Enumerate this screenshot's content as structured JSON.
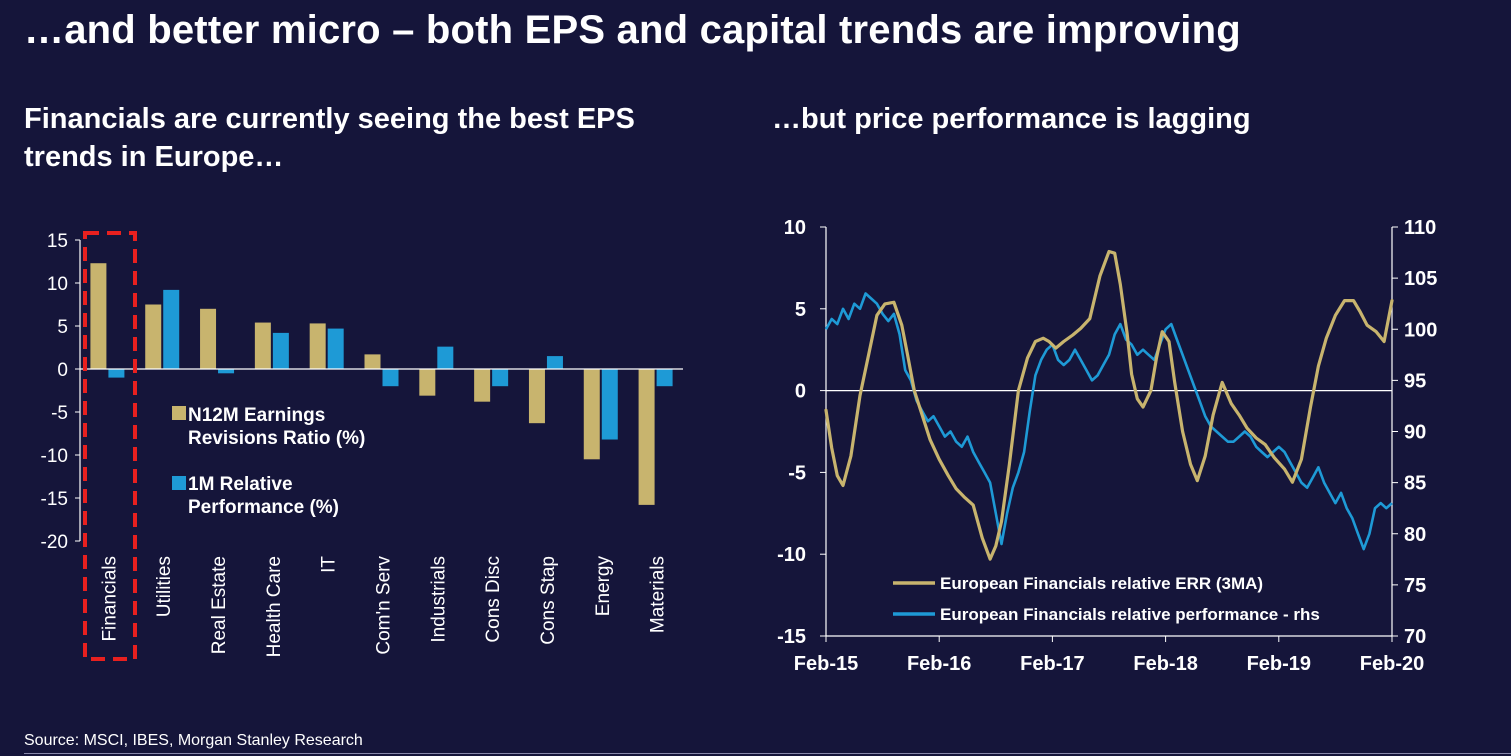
{
  "page": {
    "title": "…and better micro – both EPS and capital trends are improving",
    "left_subtitle": "Financials are currently seeing the best EPS trends in Europe…",
    "right_subtitle": "…but price performance is lagging",
    "source": "Source: MSCI, IBES, Morgan Stanley Research"
  },
  "colors": {
    "background": "#15153a",
    "tan": "#c8b46e",
    "blue": "#1e9ad6",
    "highlight": "#e8201f"
  },
  "chart_data": [
    {
      "type": "bar",
      "categories": [
        "Financials",
        "Utilities",
        "Real Estate",
        "Health Care",
        "IT",
        "Com'n Serv",
        "Industrials",
        "Cons Disc",
        "Cons Stap",
        "Energy",
        "Materials"
      ],
      "series": [
        {
          "name": "N12M Earnings Revisions Ratio (%)",
          "values": [
            12.3,
            7.5,
            7.0,
            5.4,
            5.3,
            1.7,
            -3.1,
            -3.8,
            -6.3,
            -10.5,
            -15.8
          ]
        },
        {
          "name": "1M Relative Performance (%)",
          "values": [
            -1.0,
            9.2,
            -0.5,
            4.2,
            4.7,
            -2.0,
            2.6,
            -2.0,
            1.5,
            -8.2,
            -2.0
          ]
        }
      ],
      "legend": [
        "N12M Earnings Revisions Ratio (%)",
        "1M Relative Performance (%)"
      ],
      "legend_position": "center-left",
      "yticks": [
        15,
        10,
        5,
        0,
        -5,
        -10,
        -15,
        -20
      ],
      "ylim": [
        -20,
        15
      ],
      "highlighted_category": "Financials"
    },
    {
      "type": "line",
      "x_ticks": [
        "Feb-15",
        "Feb-16",
        "Feb-17",
        "Feb-18",
        "Feb-19",
        "Feb-20"
      ],
      "xlim": [
        2015.0,
        2020.0
      ],
      "ylim_left": [
        -15,
        10
      ],
      "yticks_left": [
        10,
        5,
        0,
        -5,
        -10,
        -15
      ],
      "ylim_right": [
        70,
        110
      ],
      "yticks_right": [
        110,
        105,
        100,
        95,
        90,
        85,
        80,
        75,
        70
      ],
      "legend_position": "bottom-center",
      "series": [
        {
          "name": "European Financials relative ERR (3MA)",
          "axis": "left",
          "x": [
            2015.0,
            2015.05,
            2015.1,
            2015.15,
            2015.22,
            2015.3,
            2015.38,
            2015.45,
            2015.52,
            2015.6,
            2015.67,
            2015.72,
            2015.78,
            2015.85,
            2015.92,
            2016.0,
            2016.08,
            2016.15,
            2016.22,
            2016.3,
            2016.38,
            2016.45,
            2016.5,
            2016.55,
            2016.62,
            2016.7,
            2016.78,
            2016.85,
            2016.92,
            2016.97,
            2017.03,
            2017.1,
            2017.18,
            2017.25,
            2017.33,
            2017.42,
            2017.5,
            2017.55,
            2017.6,
            2017.66,
            2017.7,
            2017.75,
            2017.8,
            2017.87,
            2017.92,
            2017.97,
            2018.03,
            2018.08,
            2018.15,
            2018.22,
            2018.28,
            2018.35,
            2018.42,
            2018.5,
            2018.58,
            2018.65,
            2018.72,
            2018.8,
            2018.88,
            2018.96,
            2019.05,
            2019.12,
            2019.2,
            2019.28,
            2019.35,
            2019.42,
            2019.5,
            2019.58,
            2019.66,
            2019.72,
            2019.78,
            2019.86,
            2019.93,
            2020.0
          ],
          "values": [
            -1.2,
            -3.5,
            -5.2,
            -5.8,
            -4.0,
            -0.3,
            2.3,
            4.6,
            5.3,
            5.4,
            4.0,
            2.2,
            0.0,
            -1.5,
            -3.0,
            -4.2,
            -5.2,
            -6.0,
            -6.5,
            -7.0,
            -9.0,
            -10.3,
            -9.5,
            -8.0,
            -4.5,
            0.0,
            2.0,
            3.0,
            3.2,
            3.0,
            2.6,
            3.0,
            3.4,
            3.8,
            4.4,
            7.0,
            8.5,
            8.4,
            6.5,
            3.5,
            1.0,
            -0.5,
            -1.0,
            0.0,
            2.0,
            3.6,
            3.0,
            0.5,
            -2.5,
            -4.5,
            -5.5,
            -4.0,
            -1.5,
            0.5,
            -0.8,
            -1.5,
            -2.3,
            -2.9,
            -3.3,
            -4.1,
            -4.8,
            -5.6,
            -4.2,
            -1.0,
            1.5,
            3.2,
            4.6,
            5.5,
            5.5,
            4.8,
            4.0,
            3.6,
            3.0,
            5.5
          ]
        },
        {
          "name": "European Financials relative performance - rhs",
          "axis": "right",
          "x": [
            2015.0,
            2015.05,
            2015.1,
            2015.15,
            2015.2,
            2015.25,
            2015.3,
            2015.35,
            2015.4,
            2015.45,
            2015.5,
            2015.55,
            2015.6,
            2015.65,
            2015.7,
            2015.75,
            2015.8,
            2015.85,
            2015.9,
            2015.95,
            2016.0,
            2016.05,
            2016.1,
            2016.15,
            2016.2,
            2016.25,
            2016.3,
            2016.35,
            2016.4,
            2016.45,
            2016.5,
            2016.55,
            2016.6,
            2016.65,
            2016.7,
            2016.75,
            2016.8,
            2016.85,
            2016.9,
            2016.95,
            2017.0,
            2017.05,
            2017.1,
            2017.15,
            2017.2,
            2017.25,
            2017.3,
            2017.35,
            2017.4,
            2017.45,
            2017.5,
            2017.55,
            2017.6,
            2017.65,
            2017.7,
            2017.75,
            2017.8,
            2017.85,
            2017.9,
            2017.95,
            2018.0,
            2018.05,
            2018.1,
            2018.15,
            2018.2,
            2018.25,
            2018.3,
            2018.35,
            2018.4,
            2018.45,
            2018.5,
            2018.55,
            2018.6,
            2018.65,
            2018.7,
            2018.75,
            2018.8,
            2018.85,
            2018.9,
            2018.95,
            2019.0,
            2019.05,
            2019.1,
            2019.15,
            2019.2,
            2019.25,
            2019.3,
            2019.35,
            2019.4,
            2019.45,
            2019.5,
            2019.55,
            2019.6,
            2019.65,
            2019.7,
            2019.75,
            2019.8,
            2019.85,
            2019.9,
            2019.95,
            2020.0
          ],
          "values": [
            100.0,
            101.0,
            100.5,
            102.0,
            101.0,
            102.5,
            102.0,
            103.5,
            103.0,
            102.5,
            101.5,
            100.8,
            101.5,
            99.5,
            96.0,
            95.0,
            93.0,
            92.0,
            91.0,
            91.5,
            90.5,
            89.5,
            90.0,
            89.0,
            88.5,
            89.5,
            88.0,
            87.0,
            86.0,
            85.0,
            82.0,
            79.0,
            82.0,
            84.5,
            86.0,
            88.0,
            92.0,
            95.5,
            97.0,
            98.0,
            98.5,
            97.0,
            96.5,
            97.0,
            98.0,
            97.0,
            96.0,
            95.0,
            95.5,
            96.5,
            97.5,
            99.5,
            100.5,
            99.0,
            98.5,
            97.5,
            98.0,
            97.5,
            97.0,
            98.5,
            100.0,
            100.5,
            99.0,
            97.5,
            96.0,
            94.5,
            93.0,
            91.5,
            90.5,
            90.0,
            89.5,
            89.0,
            89.0,
            89.5,
            90.0,
            89.5,
            88.5,
            88.0,
            87.5,
            88.0,
            88.5,
            88.0,
            87.0,
            86.0,
            85.0,
            84.5,
            85.5,
            86.5,
            85.0,
            84.0,
            83.0,
            84.0,
            82.5,
            81.5,
            80.0,
            78.5,
            80.0,
            82.5,
            83.0,
            82.5,
            83.0
          ]
        }
      ]
    }
  ]
}
